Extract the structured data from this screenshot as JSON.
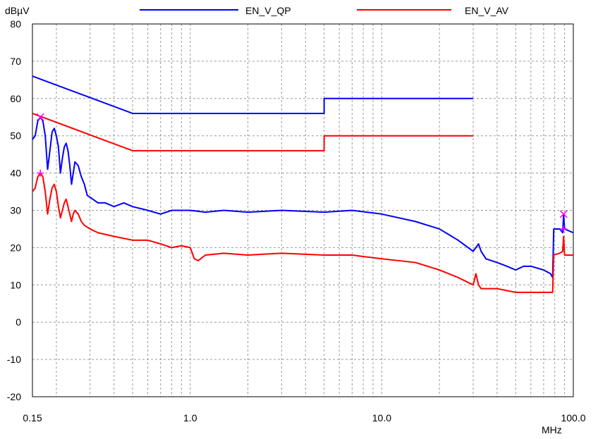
{
  "chart_data": {
    "type": "line",
    "xscale": "log",
    "xlim": [
      0.15,
      100.0
    ],
    "ylim": [
      -20,
      80
    ],
    "ylabel": "dBµV",
    "xlabel": "MHz",
    "x_ticks": [
      "0.15",
      "1.0",
      "10.0",
      "100.0"
    ],
    "y_ticks": [
      "80",
      "70",
      "60",
      "50",
      "40",
      "30",
      "20",
      "10",
      "0",
      "-10",
      "-20"
    ],
    "grid": true,
    "legend_position": "top",
    "series": [
      {
        "name": "EN_V_QP",
        "color": "#0000ff",
        "points": [
          [
            0.15,
            66
          ],
          [
            0.5,
            56
          ],
          [
            5.0,
            56
          ],
          [
            5.0,
            60
          ],
          [
            30.0,
            60
          ]
        ]
      },
      {
        "name": "EN_V_AV",
        "color": "#ff0000",
        "points": [
          [
            0.15,
            56
          ],
          [
            0.5,
            46
          ],
          [
            5.0,
            46
          ],
          [
            5.0,
            50
          ],
          [
            30.0,
            50
          ]
        ]
      },
      {
        "color": "#0000ff",
        "points": [
          [
            0.15,
            49
          ],
          [
            0.155,
            50
          ],
          [
            0.16,
            54
          ],
          [
            0.165,
            55
          ],
          [
            0.17,
            54
          ],
          [
            0.175,
            50
          ],
          [
            0.18,
            41
          ],
          [
            0.185,
            46
          ],
          [
            0.19,
            51
          ],
          [
            0.195,
            52
          ],
          [
            0.2,
            50
          ],
          [
            0.205,
            47
          ],
          [
            0.21,
            40
          ],
          [
            0.215,
            44
          ],
          [
            0.22,
            47
          ],
          [
            0.225,
            48
          ],
          [
            0.23,
            46
          ],
          [
            0.235,
            42
          ],
          [
            0.24,
            37
          ],
          [
            0.245,
            40
          ],
          [
            0.25,
            43
          ],
          [
            0.26,
            42
          ],
          [
            0.27,
            39
          ],
          [
            0.28,
            37
          ],
          [
            0.29,
            34
          ],
          [
            0.31,
            33
          ],
          [
            0.33,
            32
          ],
          [
            0.36,
            32
          ],
          [
            0.4,
            31
          ],
          [
            0.45,
            32
          ],
          [
            0.5,
            31
          ],
          [
            0.6,
            30
          ],
          [
            0.7,
            29
          ],
          [
            0.8,
            30
          ],
          [
            1.0,
            30
          ],
          [
            1.2,
            29.5
          ],
          [
            1.5,
            30
          ],
          [
            2.0,
            29.5
          ],
          [
            3.0,
            30
          ],
          [
            5.0,
            29.5
          ],
          [
            7.0,
            30
          ],
          [
            10.0,
            29
          ],
          [
            15.0,
            27
          ],
          [
            20.0,
            25
          ],
          [
            25.0,
            22
          ],
          [
            30.0,
            19
          ],
          [
            31.0,
            20
          ],
          [
            32.0,
            21
          ],
          [
            33.0,
            19
          ],
          [
            35.0,
            17
          ],
          [
            40.0,
            16
          ],
          [
            45.0,
            15
          ],
          [
            50.0,
            14
          ],
          [
            55.0,
            15
          ],
          [
            60.0,
            15
          ],
          [
            70.0,
            14
          ],
          [
            76.0,
            13
          ],
          [
            78.0,
            12
          ],
          [
            79.0,
            25
          ],
          [
            85.0,
            25
          ],
          [
            88.0,
            24
          ],
          [
            89.0,
            29
          ],
          [
            90.0,
            25
          ],
          [
            100.0,
            24
          ]
        ]
      },
      {
        "color": "#ff0000",
        "points": [
          [
            0.15,
            35
          ],
          [
            0.155,
            36
          ],
          [
            0.16,
            39
          ],
          [
            0.165,
            40
          ],
          [
            0.17,
            39
          ],
          [
            0.175,
            35
          ],
          [
            0.18,
            29
          ],
          [
            0.185,
            33
          ],
          [
            0.19,
            36
          ],
          [
            0.195,
            37
          ],
          [
            0.2,
            35
          ],
          [
            0.205,
            31
          ],
          [
            0.21,
            28
          ],
          [
            0.215,
            30
          ],
          [
            0.22,
            32
          ],
          [
            0.225,
            33
          ],
          [
            0.23,
            31
          ],
          [
            0.235,
            29
          ],
          [
            0.24,
            27
          ],
          [
            0.245,
            29
          ],
          [
            0.25,
            30
          ],
          [
            0.26,
            29
          ],
          [
            0.27,
            27
          ],
          [
            0.28,
            26
          ],
          [
            0.3,
            25
          ],
          [
            0.33,
            24
          ],
          [
            0.4,
            23
          ],
          [
            0.5,
            22
          ],
          [
            0.6,
            22
          ],
          [
            0.7,
            21
          ],
          [
            0.8,
            20
          ],
          [
            0.9,
            20.5
          ],
          [
            1.0,
            20
          ],
          [
            1.05,
            17
          ],
          [
            1.1,
            16.5
          ],
          [
            1.2,
            18
          ],
          [
            1.5,
            18.5
          ],
          [
            2.0,
            18
          ],
          [
            3.0,
            18.5
          ],
          [
            5.0,
            18
          ],
          [
            7.0,
            18
          ],
          [
            10.0,
            17
          ],
          [
            15.0,
            16
          ],
          [
            20.0,
            14
          ],
          [
            25.0,
            12
          ],
          [
            30.0,
            10
          ],
          [
            31.0,
            13
          ],
          [
            32.0,
            10
          ],
          [
            33.0,
            9
          ],
          [
            40.0,
            9
          ],
          [
            50.0,
            8
          ],
          [
            70.0,
            8
          ],
          [
            78.0,
            8
          ],
          [
            79.0,
            18
          ],
          [
            85.0,
            18.5
          ],
          [
            88.0,
            19
          ],
          [
            89.0,
            23
          ],
          [
            90.0,
            18
          ],
          [
            100.0,
            18
          ]
        ]
      }
    ],
    "markers": [
      {
        "x": 0.165,
        "y": 55,
        "shape": "x",
        "color": "#ff00ff"
      },
      {
        "x": 0.165,
        "y": 40,
        "shape": "plus",
        "color": "#ff00ff"
      },
      {
        "x": 89.0,
        "y": 29,
        "shape": "x",
        "color": "#ff00ff"
      },
      {
        "x": 89.0,
        "y": 25,
        "shape": "plus",
        "color": "#ff00ff"
      }
    ]
  }
}
